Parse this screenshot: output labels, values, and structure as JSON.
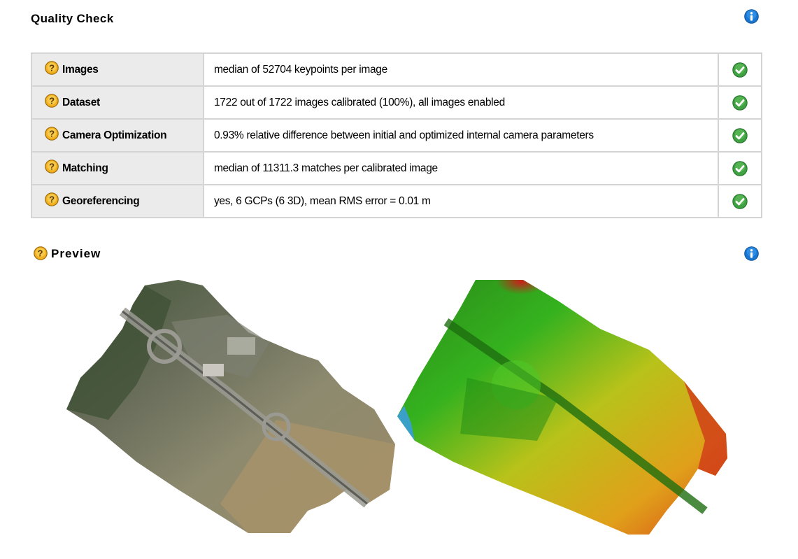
{
  "quality_check": {
    "title": "Quality Check",
    "rows": [
      {
        "name": "Images",
        "value": "median of 52704 keypoints per image",
        "status": "ok"
      },
      {
        "name": "Dataset",
        "value": "1722 out of 1722 images calibrated (100%), all images enabled",
        "status": "ok"
      },
      {
        "name": "Camera Optimization",
        "value": "0.93% relative difference between initial and optimized internal camera parameters",
        "status": "ok"
      },
      {
        "name": "Matching",
        "value": "median of 11311.3 matches per calibrated image",
        "status": "ok"
      },
      {
        "name": "Georeferencing",
        "value": "yes, 6 GCPs (6 3D), mean RMS error = 0.01 m",
        "status": "ok"
      }
    ]
  },
  "preview": {
    "title": "Preview",
    "images": [
      "orthomosaic-preview",
      "dsm-preview"
    ]
  },
  "colors": {
    "ok_green": "#3fa142",
    "help_yellow": "#f2b01e",
    "info_blue": "#1877d2",
    "header_cell_bg": "#ebebeb",
    "border": "#d4d4d4"
  }
}
